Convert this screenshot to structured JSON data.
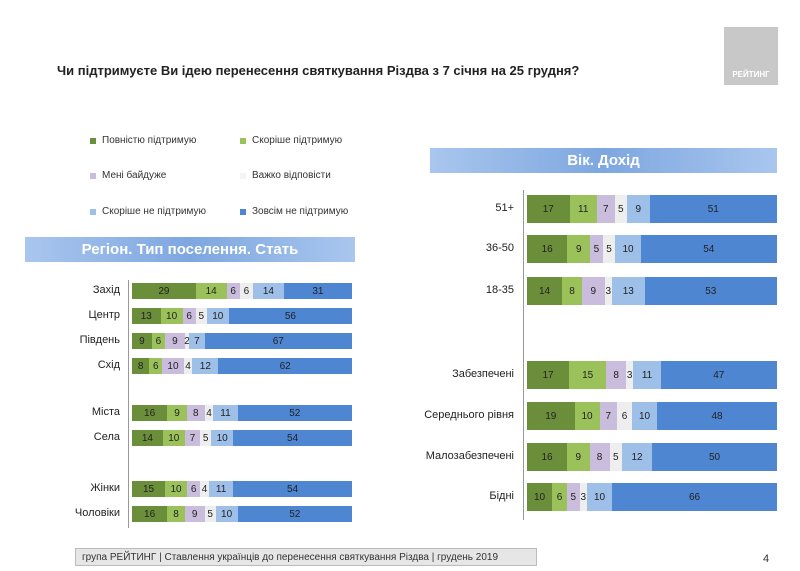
{
  "title": "Чи підтримуєте Ви ідею перенесення святкування Різдва з 7 січня на 25 грудня?",
  "logo": "РЕЙТИНГ",
  "footer": "група РЕЙТИНГ | Ставлення українців до перенесення святкування Різдва | грудень 2019",
  "page_number": "4",
  "chart_data": [
    {
      "type": "bar",
      "stacked": true,
      "orientation": "horizontal",
      "title": "Регіон. Тип поселення. Стать",
      "legend": [
        "Повністю підтримую",
        "Скоріше підтримую",
        "Мені байдуже",
        "Важко відповісти",
        "Скоріше не підтримую",
        "Зовсім не підтримую"
      ],
      "colors": [
        "#6b8e3a",
        "#9bc25a",
        "#c9bcdc",
        "#eeeeee",
        "#9dbfe8",
        "#4f86d2"
      ],
      "categories": [
        "Захід",
        "Центр",
        "Південь",
        "Схід",
        "Міста",
        "Села",
        "Жінки",
        "Чоловіки"
      ],
      "values": [
        [
          29,
          14,
          6,
          6,
          14,
          31
        ],
        [
          13,
          10,
          6,
          5,
          10,
          56
        ],
        [
          9,
          6,
          9,
          2,
          7,
          67
        ],
        [
          8,
          6,
          10,
          4,
          12,
          62
        ],
        [
          16,
          9,
          8,
          4,
          11,
          52
        ],
        [
          14,
          10,
          7,
          5,
          10,
          54
        ],
        [
          15,
          10,
          6,
          4,
          11,
          54
        ],
        [
          16,
          8,
          9,
          5,
          10,
          52
        ]
      ]
    },
    {
      "type": "bar",
      "stacked": true,
      "orientation": "horizontal",
      "title": "Вік. Дохід",
      "categories": [
        "51+",
        "36-50",
        "18-35",
        "Забезпечені",
        "Середнього рівня",
        "Малозабезпечені",
        "Бідні"
      ],
      "values": [
        [
          17,
          11,
          7,
          5,
          9,
          51
        ],
        [
          16,
          9,
          5,
          5,
          10,
          54
        ],
        [
          14,
          8,
          9,
          3,
          13,
          53
        ],
        [
          17,
          15,
          8,
          3,
          11,
          47
        ],
        [
          19,
          10,
          7,
          6,
          10,
          48
        ],
        [
          16,
          9,
          8,
          5,
          12,
          50
        ],
        [
          10,
          6,
          5,
          3,
          10,
          66
        ]
      ]
    }
  ]
}
